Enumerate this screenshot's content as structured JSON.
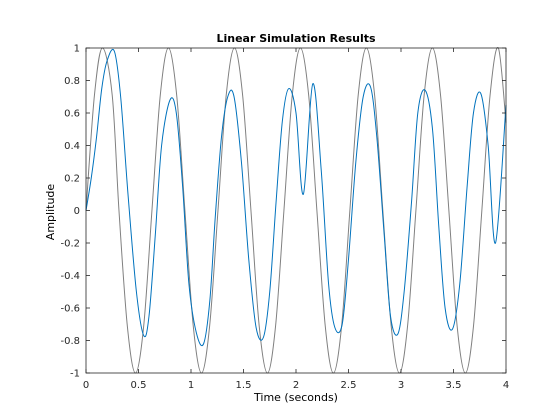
{
  "chart_data": {
    "type": "line",
    "title": "Linear Simulation Results",
    "xlabel": "Time (seconds)",
    "ylabel": "Amplitude",
    "xlim": [
      0,
      4
    ],
    "ylim": [
      -1,
      1
    ],
    "xticks": [
      0,
      0.5,
      1,
      1.5,
      2,
      2.5,
      3,
      3.5,
      4
    ],
    "xtick_labels": [
      "0",
      "0.5",
      "1",
      "1.5",
      "2",
      "2.5",
      "3",
      "3.5",
      "4"
    ],
    "yticks": [
      -1,
      -0.8,
      -0.6,
      -0.4,
      -0.2,
      0,
      0.2,
      0.4,
      0.6,
      0.8,
      1
    ],
    "ytick_labels": [
      "-1",
      "-0.8",
      "-0.6",
      "-0.4",
      "-0.2",
      "0",
      "0.2",
      "0.4",
      "0.6",
      "0.8",
      "1"
    ],
    "grid": false,
    "series": [
      {
        "color": "#808080",
        "x": [
          0,
          0.08,
          0.157,
          0.25,
          0.314,
          0.393,
          0.471,
          0.55,
          0.628,
          0.707,
          0.785,
          0.864,
          0.942,
          1.021,
          1.1,
          1.178,
          1.257,
          1.335,
          1.414,
          1.492,
          1.571,
          1.649,
          1.728,
          1.806,
          1.885,
          1.964,
          2.042,
          2.121,
          2.199,
          2.278,
          2.356,
          2.435,
          2.513,
          2.592,
          2.67,
          2.749,
          2.827,
          2.906,
          2.985,
          3.063,
          3.142,
          3.22,
          3.299,
          3.377,
          3.456,
          3.534,
          3.613,
          3.691,
          3.77,
          3.848,
          3.927,
          4.0
        ],
        "y": [
          0,
          0.707,
          1,
          0.707,
          0,
          -0.707,
          -1,
          -0.707,
          0,
          0.707,
          1,
          0.707,
          0,
          -0.707,
          -1,
          -0.707,
          0,
          0.707,
          1,
          0.707,
          0,
          -0.707,
          -1,
          -0.707,
          0,
          0.707,
          1,
          0.707,
          0,
          -0.707,
          -1,
          -0.707,
          0,
          0.707,
          1,
          0.707,
          0,
          -0.707,
          -1,
          -0.707,
          0,
          0.707,
          1,
          0.707,
          0,
          -0.707,
          -1,
          -0.707,
          0,
          0.707,
          1,
          0.54
        ]
      },
      {
        "color": "#0072bd",
        "x": [
          0,
          0.05,
          0.1,
          0.15,
          0.2,
          0.27,
          0.33,
          0.4,
          0.48,
          0.55,
          0.6,
          0.66,
          0.72,
          0.8,
          0.86,
          0.92,
          0.98,
          1.05,
          1.12,
          1.18,
          1.23,
          1.29,
          1.35,
          1.41,
          1.48,
          1.55,
          1.62,
          1.69,
          1.75,
          1.81,
          1.87,
          1.93,
          2.0,
          2.07,
          2.16,
          2.24,
          2.31,
          2.37,
          2.44,
          2.5,
          2.57,
          2.64,
          2.71,
          2.77,
          2.84,
          2.9,
          2.97,
          3.03,
          3.1,
          3.16,
          3.23,
          3.3,
          3.36,
          3.42,
          3.49,
          3.56,
          3.63,
          3.69,
          3.76,
          3.83,
          3.9,
          4.0
        ],
        "y": [
          0,
          0.2,
          0.45,
          0.75,
          0.92,
          0.98,
          0.7,
          0.1,
          -0.5,
          -0.77,
          -0.65,
          -0.15,
          0.4,
          0.68,
          0.6,
          0.15,
          -0.45,
          -0.75,
          -0.82,
          -0.55,
          -0.05,
          0.45,
          0.7,
          0.7,
          0.3,
          -0.3,
          -0.72,
          -0.78,
          -0.5,
          0.05,
          0.55,
          0.75,
          0.6,
          0.1,
          0.78,
          0.25,
          -0.45,
          -0.72,
          -0.7,
          -0.3,
          0.3,
          0.7,
          0.76,
          0.45,
          -0.15,
          -0.65,
          -0.76,
          -0.5,
          0.05,
          0.6,
          0.74,
          0.5,
          -0.1,
          -0.6,
          -0.73,
          -0.45,
          0.15,
          0.6,
          0.72,
          0.4,
          -0.2,
          0.65
        ]
      }
    ]
  }
}
